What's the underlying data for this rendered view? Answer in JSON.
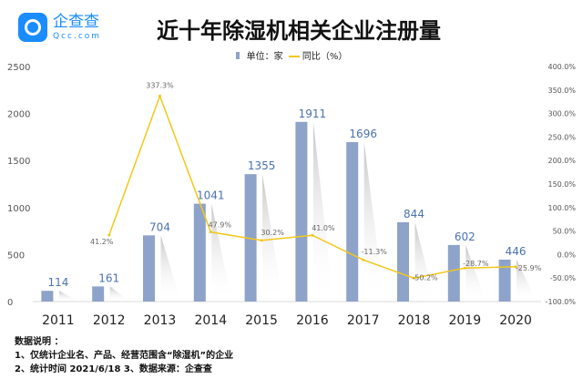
{
  "logo": {
    "name": "企查查",
    "domain": "Qcc.com"
  },
  "chart_data": {
    "type": "bar+line",
    "title": "近十年除湿机相关企业注册量",
    "categories": [
      "2011",
      "2012",
      "2013",
      "2014",
      "2015",
      "2016",
      "2017",
      "2018",
      "2019",
      "2020"
    ],
    "series": [
      {
        "name": "单位：家",
        "type": "bar",
        "axis": "left",
        "values": [
          114,
          161,
          704,
          1041,
          1355,
          1911,
          1696,
          844,
          602,
          446
        ],
        "color": "#8ea3c9"
      },
      {
        "name": "同比（%）",
        "type": "line",
        "axis": "right",
        "values": [
          null,
          41.2,
          337.3,
          47.9,
          30.2,
          41.0,
          -11.3,
          -50.2,
          -28.7,
          -25.9
        ],
        "color": "#f2c71a"
      }
    ],
    "left_axis": {
      "ylim": [
        0,
        2500
      ],
      "ticks": [
        "0",
        "500",
        "1000",
        "1500",
        "2000",
        "2500"
      ]
    },
    "right_axis": {
      "ylim": [
        -100,
        400
      ],
      "ticks": [
        "-100.0%",
        "-50.0%",
        "0.0%",
        "50.0%",
        "100.0%",
        "150.0%",
        "200.0%",
        "250.0%",
        "300.0%",
        "350.0%",
        "400.0%"
      ]
    },
    "bar_labels": [
      "114",
      "161",
      "704",
      "1041",
      "1355",
      "1911",
      "1696",
      "844",
      "602",
      "446"
    ],
    "line_labels": [
      "",
      "41.2%",
      "337.3%",
      "47.9%",
      "30.2%",
      "41.0%",
      "-11.3%",
      "-50.2%",
      "-28.7%",
      "-25.9%"
    ],
    "legend_placement": "top-center",
    "grid": false
  },
  "notes": {
    "heading": "数据说明 ：",
    "line1": "1、仅统计企业名、产品、经营范围含“除湿机”的企业",
    "line2": "2、统计时间  2021/6/18      3、数据来源：企查查"
  }
}
